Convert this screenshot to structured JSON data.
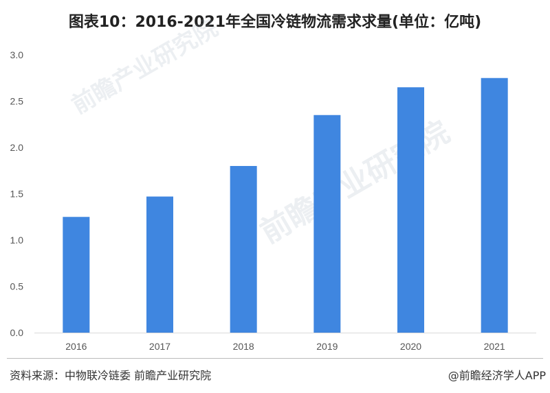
{
  "title": "图表10：2016-2021年全国冷链物流需求求量(单位：亿吨)",
  "source": "资料来源：中物联冷链委 前瞻产业研究院",
  "credit": "@前瞻经济学人APP",
  "watermark": "前瞻产业研究院",
  "colors": {
    "bar": "#3f86e0",
    "axis": "#d9d9d9",
    "grid": "#e6e6e6"
  },
  "chart_data": {
    "type": "bar",
    "title": "图表10：2016-2021年全国冷链物流需求求量(单位：亿吨)",
    "categories": [
      "2016",
      "2017",
      "2018",
      "2019",
      "2020",
      "2021"
    ],
    "values": [
      1.25,
      1.47,
      1.8,
      2.35,
      2.65,
      2.75
    ],
    "yticks": [
      "0.0",
      "0.5",
      "1.0",
      "1.5",
      "2.0",
      "2.5",
      "3.0"
    ],
    "ylim": [
      0,
      3.0
    ],
    "xlabel": "",
    "ylabel": "",
    "grid": false,
    "legend": "none"
  }
}
